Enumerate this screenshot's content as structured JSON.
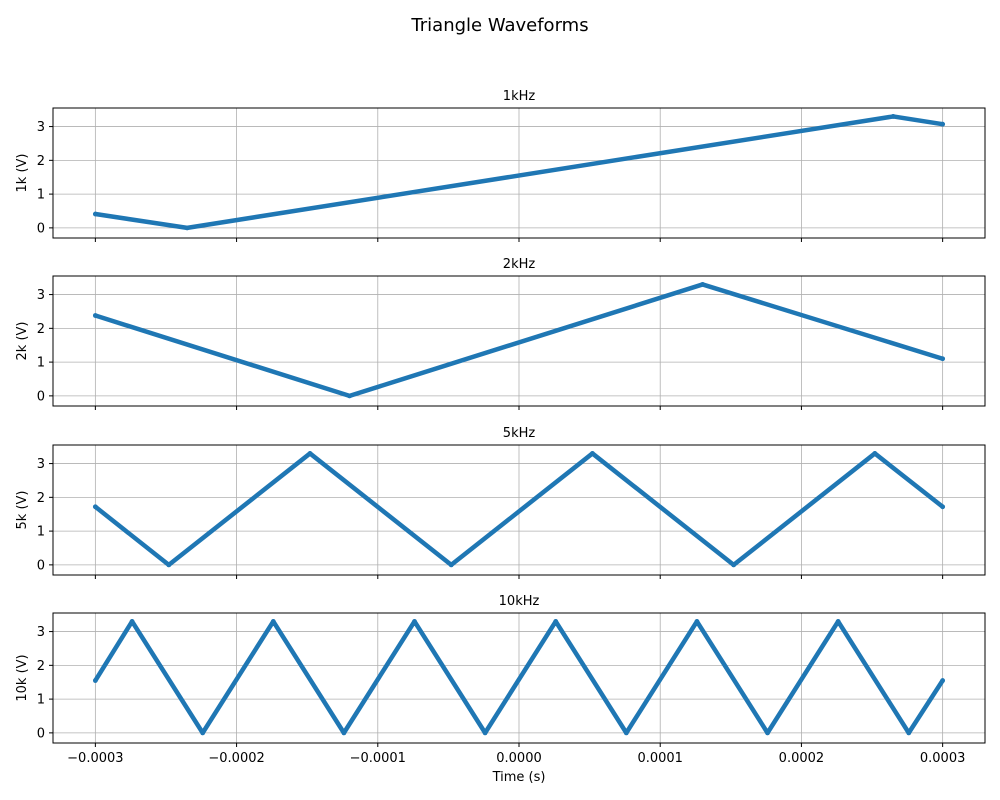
{
  "chart_data": {
    "type": "line",
    "title": "Triangle Waveforms",
    "xlabel": "Time (s)",
    "xlim": [
      -0.00033,
      0.00033
    ],
    "x_ticks": [
      -0.0003,
      -0.0002,
      -0.0001,
      0.0,
      0.0001,
      0.0002,
      0.0003
    ],
    "x_tick_labels": [
      "−0.0003",
      "−0.0002",
      "−0.0001",
      "0.0000",
      "0.0001",
      "0.0002",
      "0.0003"
    ],
    "ylim": [
      -0.3,
      3.55
    ],
    "y_ticks": [
      0,
      1,
      2,
      3
    ],
    "y_tick_labels": [
      "0",
      "1",
      "2",
      "3"
    ],
    "grid": true,
    "line_color": "#1f77b4",
    "panels": [
      {
        "title": "1kHz",
        "ylabel": "1k (V)",
        "points": [
          [
            -0.0003,
            0.41
          ],
          [
            -0.000235,
            0.0
          ],
          [
            0.000265,
            3.3
          ],
          [
            0.0003,
            3.07
          ]
        ]
      },
      {
        "title": "2kHz",
        "ylabel": "2k (V)",
        "points": [
          [
            -0.0003,
            2.38
          ],
          [
            -0.00012,
            0.0
          ],
          [
            0.00013,
            3.3
          ],
          [
            0.0003,
            1.1
          ]
        ]
      },
      {
        "title": "5kHz",
        "ylabel": "5k (V)",
        "points": [
          [
            -0.0003,
            1.72
          ],
          [
            -0.000248,
            0.0
          ],
          [
            -0.000148,
            3.3
          ],
          [
            -4.8e-05,
            0.0
          ],
          [
            5.2e-05,
            3.3
          ],
          [
            0.000152,
            0.0
          ],
          [
            0.000252,
            3.3
          ],
          [
            0.0003,
            1.72
          ]
        ]
      },
      {
        "title": "10kHz",
        "ylabel": "10k (V)",
        "points": [
          [
            -0.0003,
            1.55
          ],
          [
            -0.000274,
            3.3
          ],
          [
            -0.000224,
            0.0
          ],
          [
            -0.000174,
            3.3
          ],
          [
            -0.000124,
            0.0
          ],
          [
            -7.4e-05,
            3.3
          ],
          [
            -2.4e-05,
            0.0
          ],
          [
            2.6e-05,
            3.3
          ],
          [
            7.6e-05,
            0.0
          ],
          [
            0.000126,
            3.3
          ],
          [
            0.000176,
            0.0
          ],
          [
            0.000226,
            3.3
          ],
          [
            0.000276,
            0.0
          ],
          [
            0.0003,
            1.55
          ]
        ]
      }
    ]
  }
}
